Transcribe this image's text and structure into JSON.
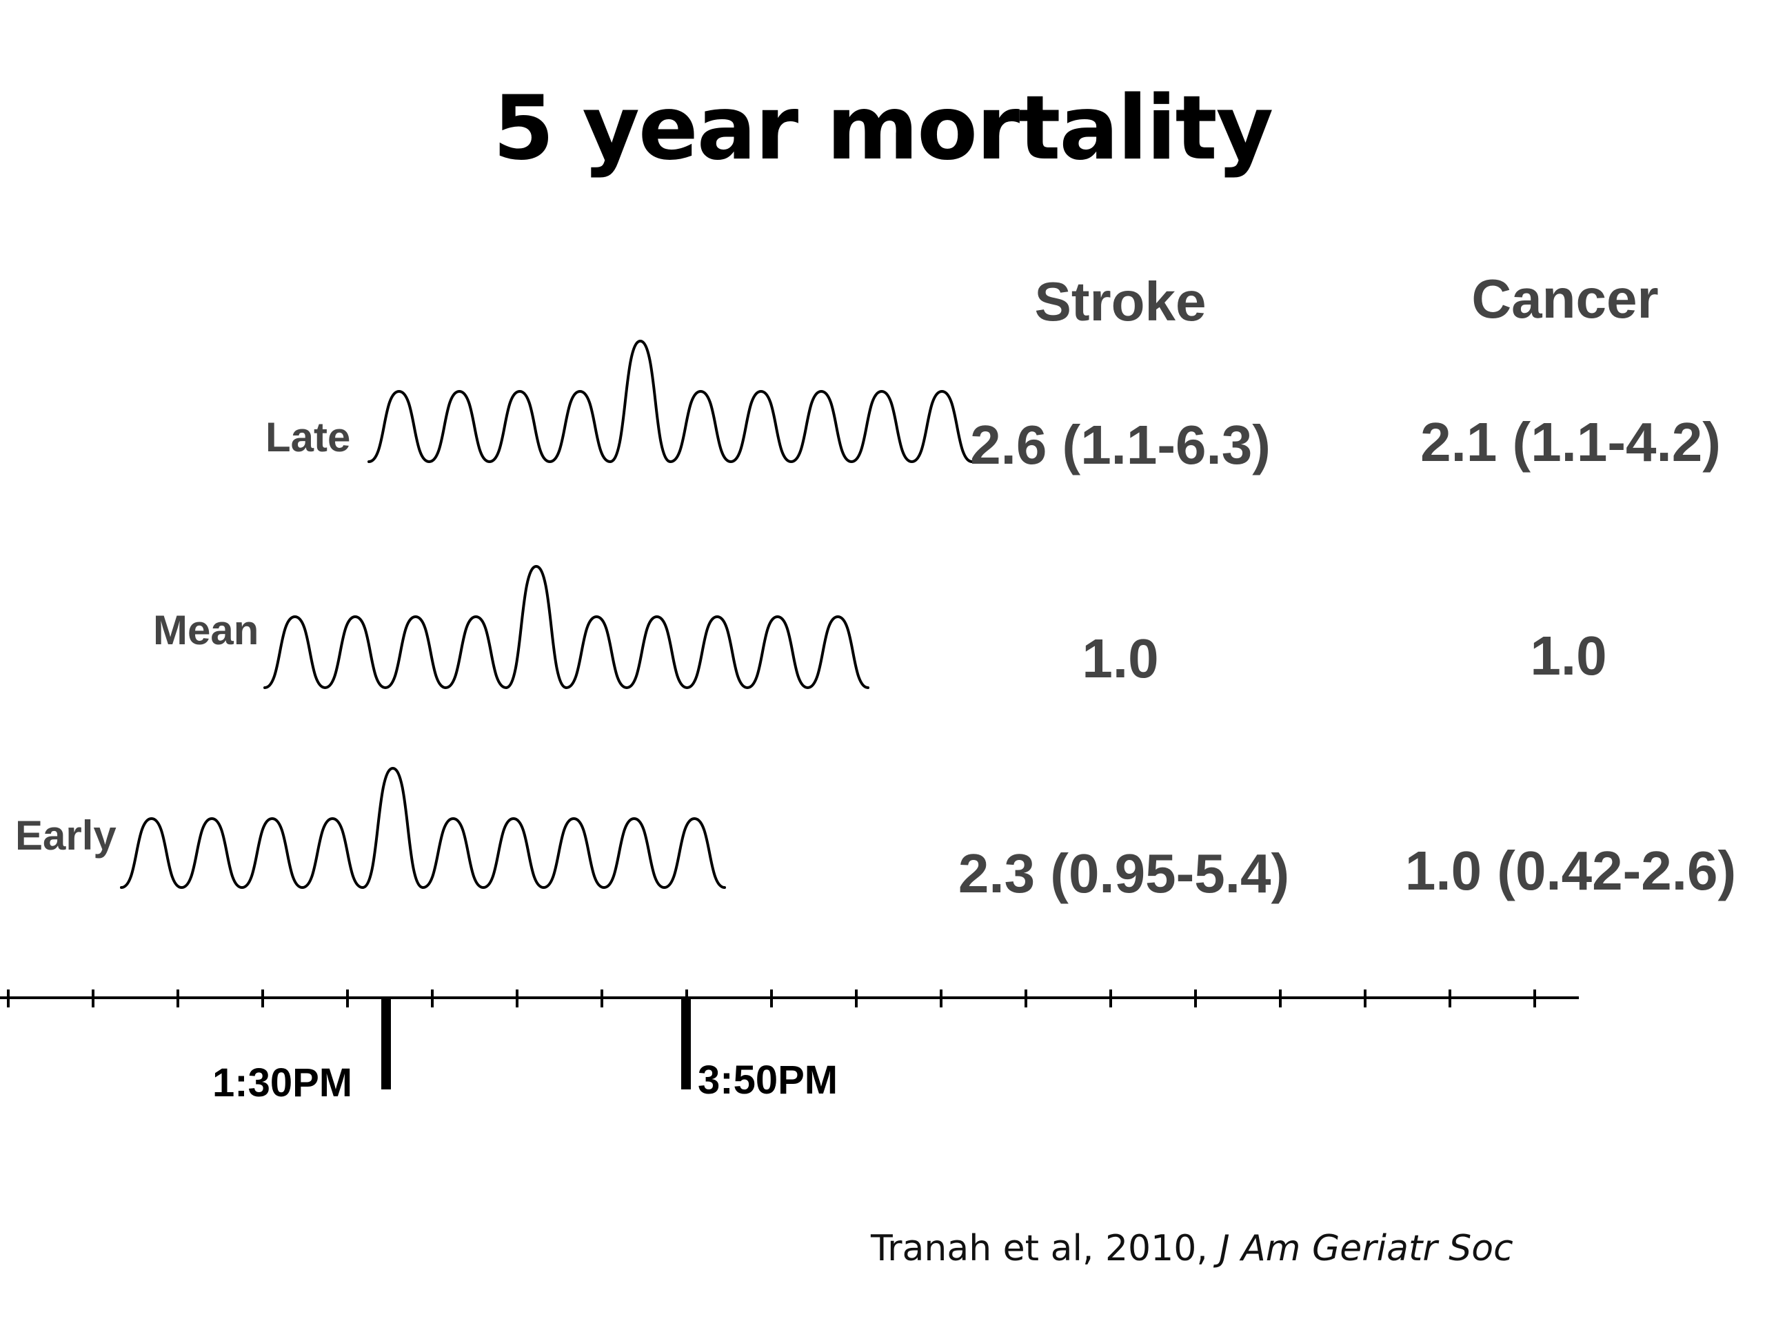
{
  "title": "5 year mortality",
  "columns": [
    "Stroke",
    "Cancer"
  ],
  "rows": [
    {
      "label": "Late",
      "stroke": "2.6 (1.1-6.3)",
      "cancer": "2.1 (1.1-4.2)"
    },
    {
      "label": "Mean",
      "stroke": "1.0",
      "cancer": "1.0"
    },
    {
      "label": "Early",
      "stroke": "2.3 (0.95-5.4)",
      "cancer": "1.0 (0.42-2.6)"
    }
  ],
  "timeline": {
    "markers": [
      "1:30PM",
      "3:50PM"
    ]
  },
  "citation": {
    "authors": "Tranah et al, 2010, ",
    "journal": "J Am Geriatr Soc"
  }
}
